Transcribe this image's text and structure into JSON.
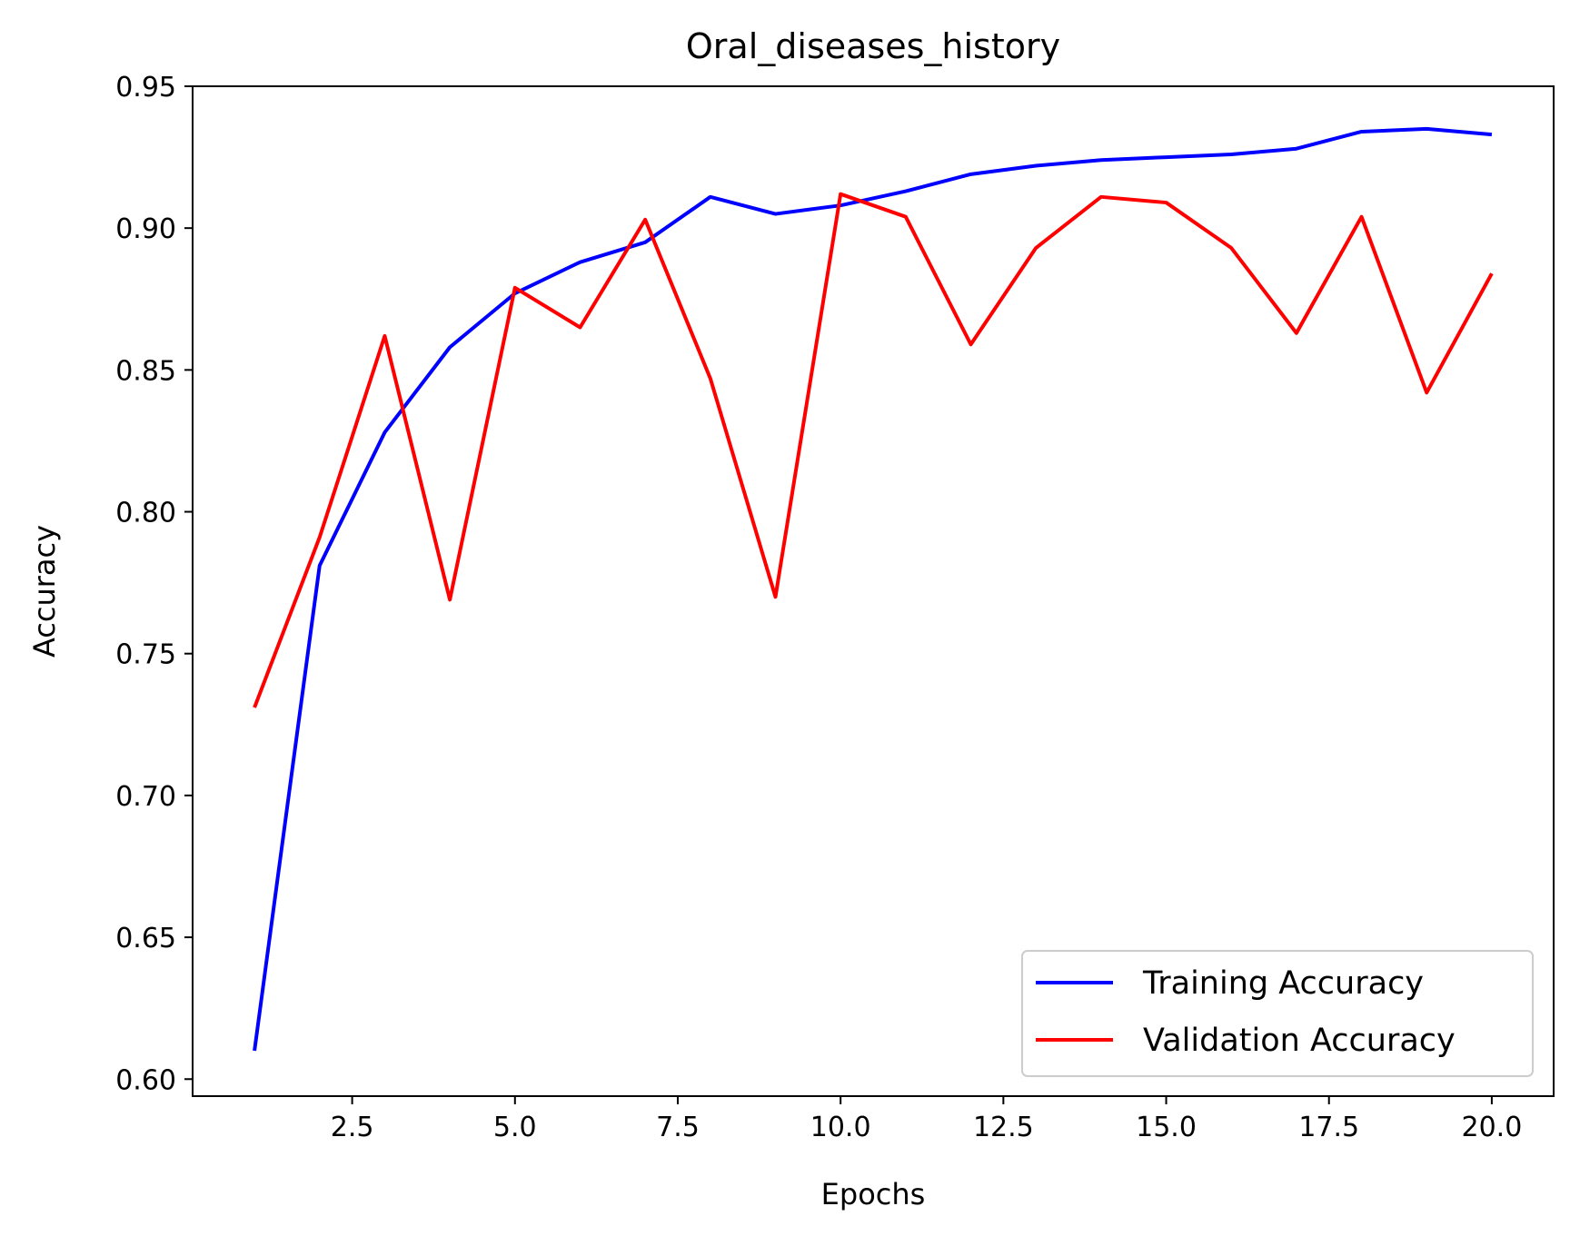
{
  "chart_data": {
    "type": "line",
    "title": "Oral_diseases_history",
    "xlabel": "Epochs",
    "ylabel": "Accuracy",
    "xlim": [
      0.05,
      20.95
    ],
    "ylim": [
      0.594,
      0.95
    ],
    "xticks": [
      2.5,
      5.0,
      7.5,
      10.0,
      12.5,
      15.0,
      17.5,
      20.0
    ],
    "xtick_labels": [
      "2.5",
      "5.0",
      "7.5",
      "10.0",
      "12.5",
      "15.0",
      "17.5",
      "20.0"
    ],
    "yticks": [
      0.6,
      0.65,
      0.7,
      0.75,
      0.8,
      0.85,
      0.9,
      0.95
    ],
    "ytick_labels": [
      "0.60",
      "0.65",
      "0.70",
      "0.75",
      "0.80",
      "0.85",
      "0.90",
      "0.95"
    ],
    "grid": false,
    "legend_position": "bottom-right",
    "x": [
      1,
      2,
      3,
      4,
      5,
      6,
      7,
      8,
      9,
      10,
      11,
      12,
      13,
      14,
      15,
      16,
      17,
      18,
      19,
      20
    ],
    "series": [
      {
        "name": "Training Accuracy",
        "color": "#0000ff",
        "values": [
          0.61,
          0.781,
          0.828,
          0.858,
          0.877,
          0.888,
          0.895,
          0.911,
          0.905,
          0.908,
          0.913,
          0.919,
          0.922,
          0.924,
          0.925,
          0.926,
          0.928,
          0.934,
          0.935,
          0.933
        ]
      },
      {
        "name": "Validation Accuracy",
        "color": "#ff0000",
        "values": [
          0.731,
          0.791,
          0.862,
          0.769,
          0.879,
          0.865,
          0.903,
          0.847,
          0.77,
          0.912,
          0.904,
          0.859,
          0.893,
          0.911,
          0.909,
          0.893,
          0.863,
          0.904,
          0.842,
          0.884
        ]
      }
    ]
  }
}
